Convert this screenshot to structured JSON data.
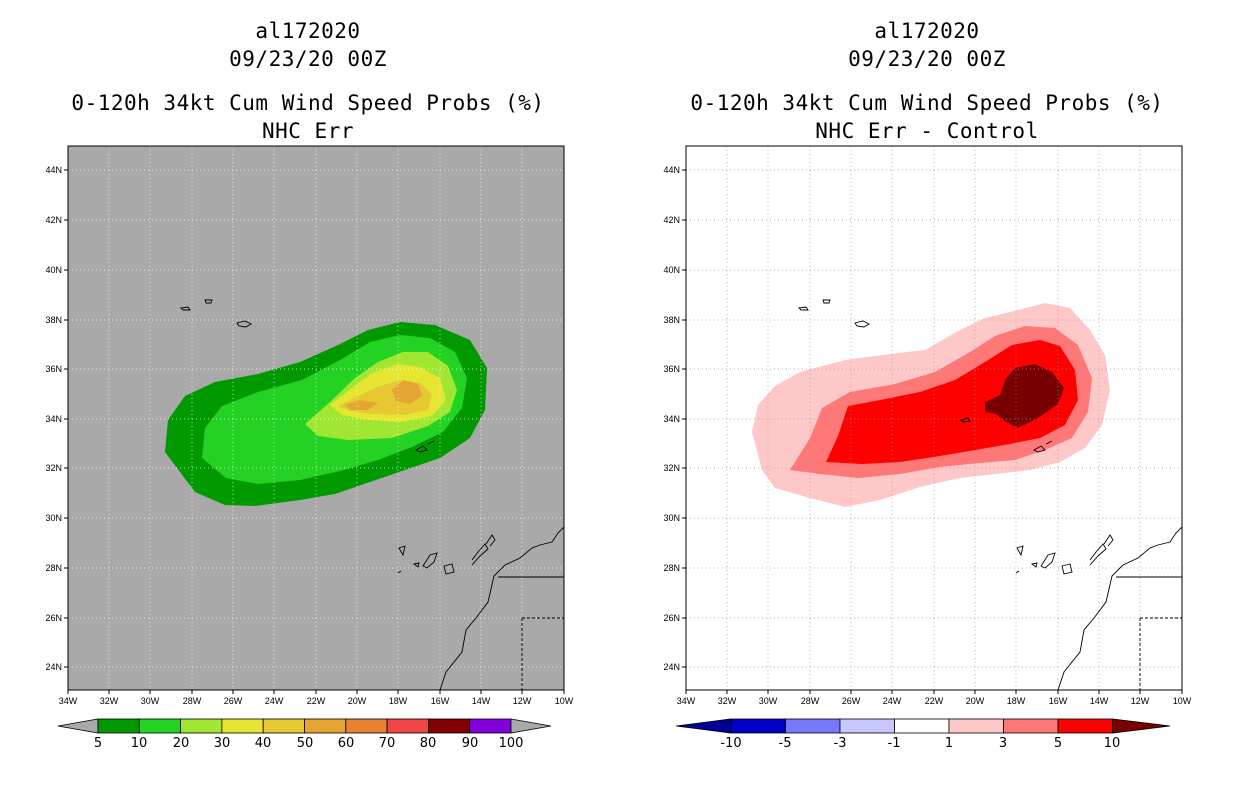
{
  "left_panel": {
    "title_line1": "al172020",
    "title_line2": "09/23/20 00Z",
    "title_line3": "0-120h 34kt Cum Wind Speed Probs (%)",
    "title_line4": "NHC Err",
    "colorbar": {
      "labels": [
        "5",
        "10",
        "20",
        "30",
        "40",
        "50",
        "60",
        "70",
        "80",
        "90",
        "100"
      ],
      "colors": [
        "#009a00",
        "#23d223",
        "#a0e632",
        "#e6e632",
        "#e6c832",
        "#e6a532",
        "#e68232",
        "#f04646",
        "#820000",
        "#8200dc"
      ],
      "end_color": "#a9a9a9"
    },
    "background_color": "#a9a9a9"
  },
  "right_panel": {
    "title_line1": "al172020",
    "title_line2": "09/23/20 00Z",
    "title_line3": "0-120h 34kt Cum Wind Speed Probs (%)",
    "title_line4": "NHC Err - Control",
    "colorbar": {
      "labels": [
        "-10",
        "-5",
        "-3",
        "-1",
        "1",
        "3",
        "5",
        "10"
      ],
      "colors": [
        "#0000c8",
        "#2828ff",
        "#7878ff",
        "#c8c8ff",
        "#ffffff",
        "#ffc8c8",
        "#ff7878",
        "#ff0000"
      ],
      "low_color": "#000096",
      "high_color": "#780000"
    },
    "background_color": "#ffffff"
  },
  "axes": {
    "lat_labels": [
      "44N",
      "42N",
      "40N",
      "38N",
      "36N",
      "34N",
      "32N",
      "30N",
      "28N",
      "26N",
      "24N"
    ],
    "lon_labels": [
      "34W",
      "32W",
      "30W",
      "28W",
      "26W",
      "24W",
      "22W",
      "20W",
      "18W",
      "16W",
      "14W",
      "12W",
      "10W"
    ]
  }
}
